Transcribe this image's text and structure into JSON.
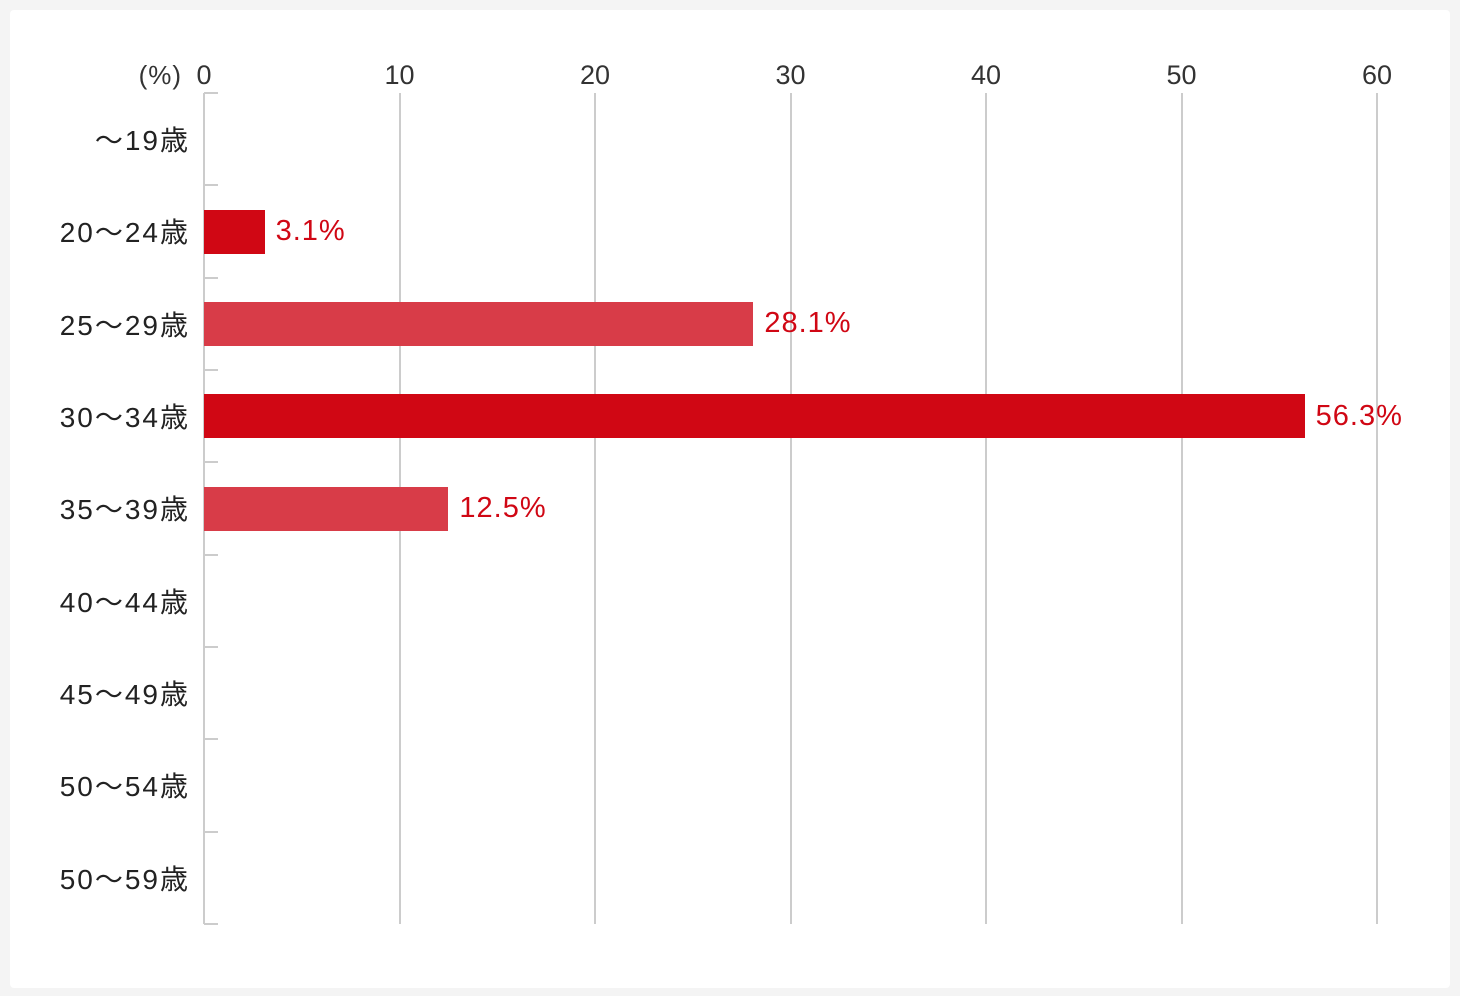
{
  "page": {
    "background_color": "#f4f4f4",
    "card_color": "#ffffff"
  },
  "chart_data": {
    "type": "bar",
    "orientation": "horizontal",
    "title": "",
    "unit_label": "(%)",
    "categories": [
      "～19歳",
      "20～24歳",
      "25～29歳",
      "30～34歳",
      "35～39歳",
      "40～44歳",
      "45～49歳",
      "50～54歳",
      "50～59歳"
    ],
    "values": [
      0,
      3.1,
      28.1,
      56.3,
      12.5,
      0,
      0,
      0,
      0
    ],
    "value_labels": [
      "",
      "3.1%",
      "28.1%",
      "56.3%",
      "12.5%",
      "",
      "",
      "",
      ""
    ],
    "bar_colors": [
      "",
      "#d00714",
      "#d83c48",
      "#d00714",
      "#d83c48",
      "",
      "",
      "",
      ""
    ],
    "xlim": [
      0,
      60
    ],
    "x_ticks": [
      0,
      10,
      20,
      30,
      40,
      50,
      60
    ],
    "grid": true,
    "legend": false,
    "colors": {
      "bar_dark": "#d00714",
      "bar_light": "#d83c48",
      "value_label": "#d00714",
      "gridline": "#cccccc",
      "axis_text": "#333333",
      "category_text": "#222222"
    }
  }
}
